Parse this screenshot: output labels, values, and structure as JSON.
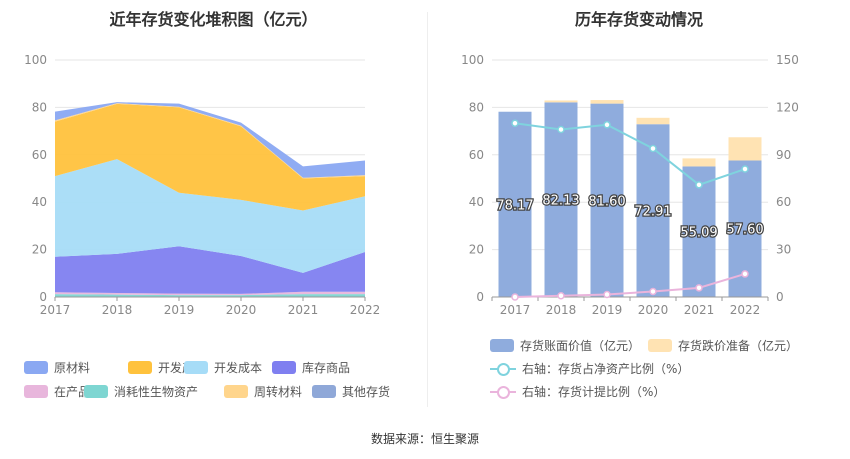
{
  "left_title": "近年存货变化堆积图（亿元）",
  "right_title": "历年存货变动情况",
  "source_text": "数据来源：恒生聚源",
  "left_legend": [
    {
      "label": "原材料",
      "color": "#8aa8f2"
    },
    {
      "label": "开发产品",
      "color": "#ffc23d"
    },
    {
      "label": "开发成本",
      "color": "#a6dcf7"
    },
    {
      "label": "库存商品",
      "color": "#7f7ff0"
    },
    {
      "label": "在产品",
      "color": "#e8b6dc"
    },
    {
      "label": "消耗性生物资产",
      "color": "#7ed6d2"
    },
    {
      "label": "周转材料",
      "color": "#ffd58c"
    },
    {
      "label": "其他存货",
      "color": "#8fa8d8"
    }
  ],
  "right_legend": {
    "bar1": {
      "label": "存货账面价值（亿元）",
      "color": "#8facdd"
    },
    "bar2": {
      "label": "存货跌价准备（亿元）",
      "color": "#ffe3b3"
    },
    "line1": {
      "label": "右轴：存货占净资产比例（%）",
      "color": "#7fd3de"
    },
    "line2": {
      "label": "右轴：存货计提比例（%）",
      "color": "#eab4dc"
    }
  },
  "chart_data": [
    {
      "type": "area",
      "stacked": true,
      "x": [
        "2017",
        "2018",
        "2019",
        "2020",
        "2021",
        "2022"
      ],
      "ylim": [
        0,
        100
      ],
      "yticks": [
        0,
        20,
        40,
        60,
        80,
        100
      ],
      "grid": true,
      "legend_position": "bottom",
      "series": [
        {
          "name": "消耗性生物资产",
          "color": "#7ed6d2",
          "values": [
            1.2,
            1.0,
            0.8,
            0.8,
            1.2,
            1.2
          ]
        },
        {
          "name": "在产品",
          "color": "#e8b6dc",
          "values": [
            0.8,
            0.7,
            0.6,
            0.5,
            1.0,
            1.0
          ]
        },
        {
          "name": "库存商品",
          "color": "#7f7ff0",
          "values": [
            15.0,
            16.5,
            20.0,
            16.0,
            8.0,
            16.8
          ]
        },
        {
          "name": "开发成本",
          "color": "#a6dcf7",
          "values": [
            34.0,
            40.0,
            22.6,
            23.7,
            26.3,
            23.5
          ]
        },
        {
          "name": "开发产品",
          "color": "#ffc23d",
          "values": [
            23.0,
            23.3,
            36.0,
            31.0,
            13.5,
            8.5
          ]
        },
        {
          "name": "周转材料",
          "color": "#ffd58c",
          "values": [
            0.5,
            0.3,
            0.3,
            0.3,
            0.3,
            0.4
          ]
        },
        {
          "name": "原材料",
          "color": "#8aa8f2",
          "values": [
            3.7,
            0.4,
            1.3,
            1.3,
            4.8,
            6.2
          ]
        },
        {
          "name": "其他存货",
          "color": "#8fa8d8",
          "values": [
            0,
            0,
            0,
            0,
            0,
            0
          ]
        }
      ]
    },
    {
      "type": "bar",
      "stacked": true,
      "categories": [
        "2017",
        "2018",
        "2019",
        "2020",
        "2021",
        "2022"
      ],
      "ylim": [
        0,
        100
      ],
      "yticks": [
        0,
        20,
        40,
        60,
        80,
        100
      ],
      "y2lim": [
        0,
        150
      ],
      "y2ticks": [
        0,
        30,
        60,
        90,
        120,
        150
      ],
      "grid": true,
      "legend_position": "bottom",
      "series": [
        {
          "name": "存货账面价值（亿元）",
          "color": "#8facdd",
          "values": [
            78.17,
            82.13,
            81.6,
            72.91,
            55.09,
            57.6
          ],
          "labels": [
            "78.17",
            "82.13",
            "81.60",
            "72.91",
            "55.09",
            "57.60"
          ]
        },
        {
          "name": "存货跌价准备（亿元）",
          "color": "#ffe3b3",
          "values": [
            0,
            0.8,
            1.5,
            2.7,
            3.4,
            9.8
          ]
        }
      ],
      "line_series": [
        {
          "name": "右轴：存货占净资产比例（%）",
          "color": "#7fd3de",
          "axis": "right",
          "values": [
            110,
            106,
            109,
            94,
            71,
            81
          ]
        },
        {
          "name": "右轴：存货计提比例（%）",
          "color": "#eab4dc",
          "axis": "right",
          "values": [
            0,
            0.8,
            1.6,
            3.5,
            5.8,
            14.6
          ]
        }
      ]
    }
  ]
}
